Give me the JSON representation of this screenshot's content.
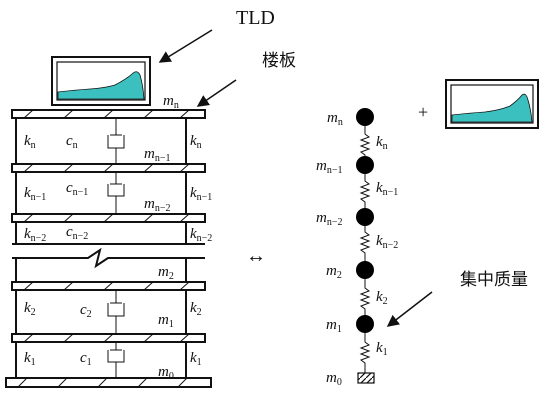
{
  "labels": {
    "tld": "TLD",
    "floor_slab": "楼板",
    "lumped_mass": "集中质量",
    "plus": "+",
    "equivalence": "↔"
  },
  "masses": {
    "m_n": {
      "base": "m",
      "sub": "n"
    },
    "m_n_minus_1": {
      "base": "m",
      "sub": "n−1"
    },
    "m_n_minus_2": {
      "base": "m",
      "sub": "n−2"
    },
    "m_2": {
      "base": "m",
      "sub": "2"
    },
    "m_1": {
      "base": "m",
      "sub": "1"
    },
    "m_0": {
      "base": "m",
      "sub": "0"
    }
  },
  "stiffness": {
    "k_n": {
      "base": "k",
      "sub": "n"
    },
    "k_n_minus_1": {
      "base": "k",
      "sub": "n−1"
    },
    "k_n_minus_2": {
      "base": "k",
      "sub": "n−2"
    },
    "k_2": {
      "base": "k",
      "sub": "2"
    },
    "k_1": {
      "base": "k",
      "sub": "1"
    }
  },
  "damping": {
    "c_n": {
      "base": "c",
      "sub": "n"
    },
    "c_n_minus_1": {
      "base": "c",
      "sub": "n−1"
    },
    "c_n_minus_2": {
      "base": "c",
      "sub": "n−2"
    },
    "c_2": {
      "base": "c",
      "sub": "2"
    },
    "c_1": {
      "base": "c",
      "sub": "1"
    }
  },
  "colors": {
    "water": "#3cbfbf",
    "line": "#111111",
    "mass": "#000000"
  }
}
